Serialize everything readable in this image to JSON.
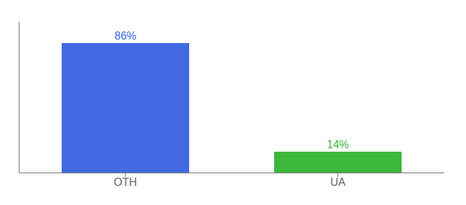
{
  "chart_data": {
    "type": "bar",
    "categories": [
      "OTH",
      "UA"
    ],
    "values": [
      86,
      14
    ],
    "value_labels": [
      "86%",
      "14%"
    ],
    "colors": [
      "#4169e1",
      "#3cb83c"
    ],
    "ylim": [
      0,
      100
    ],
    "data_labels": true,
    "tick_labels": "x",
    "grid": false
  }
}
